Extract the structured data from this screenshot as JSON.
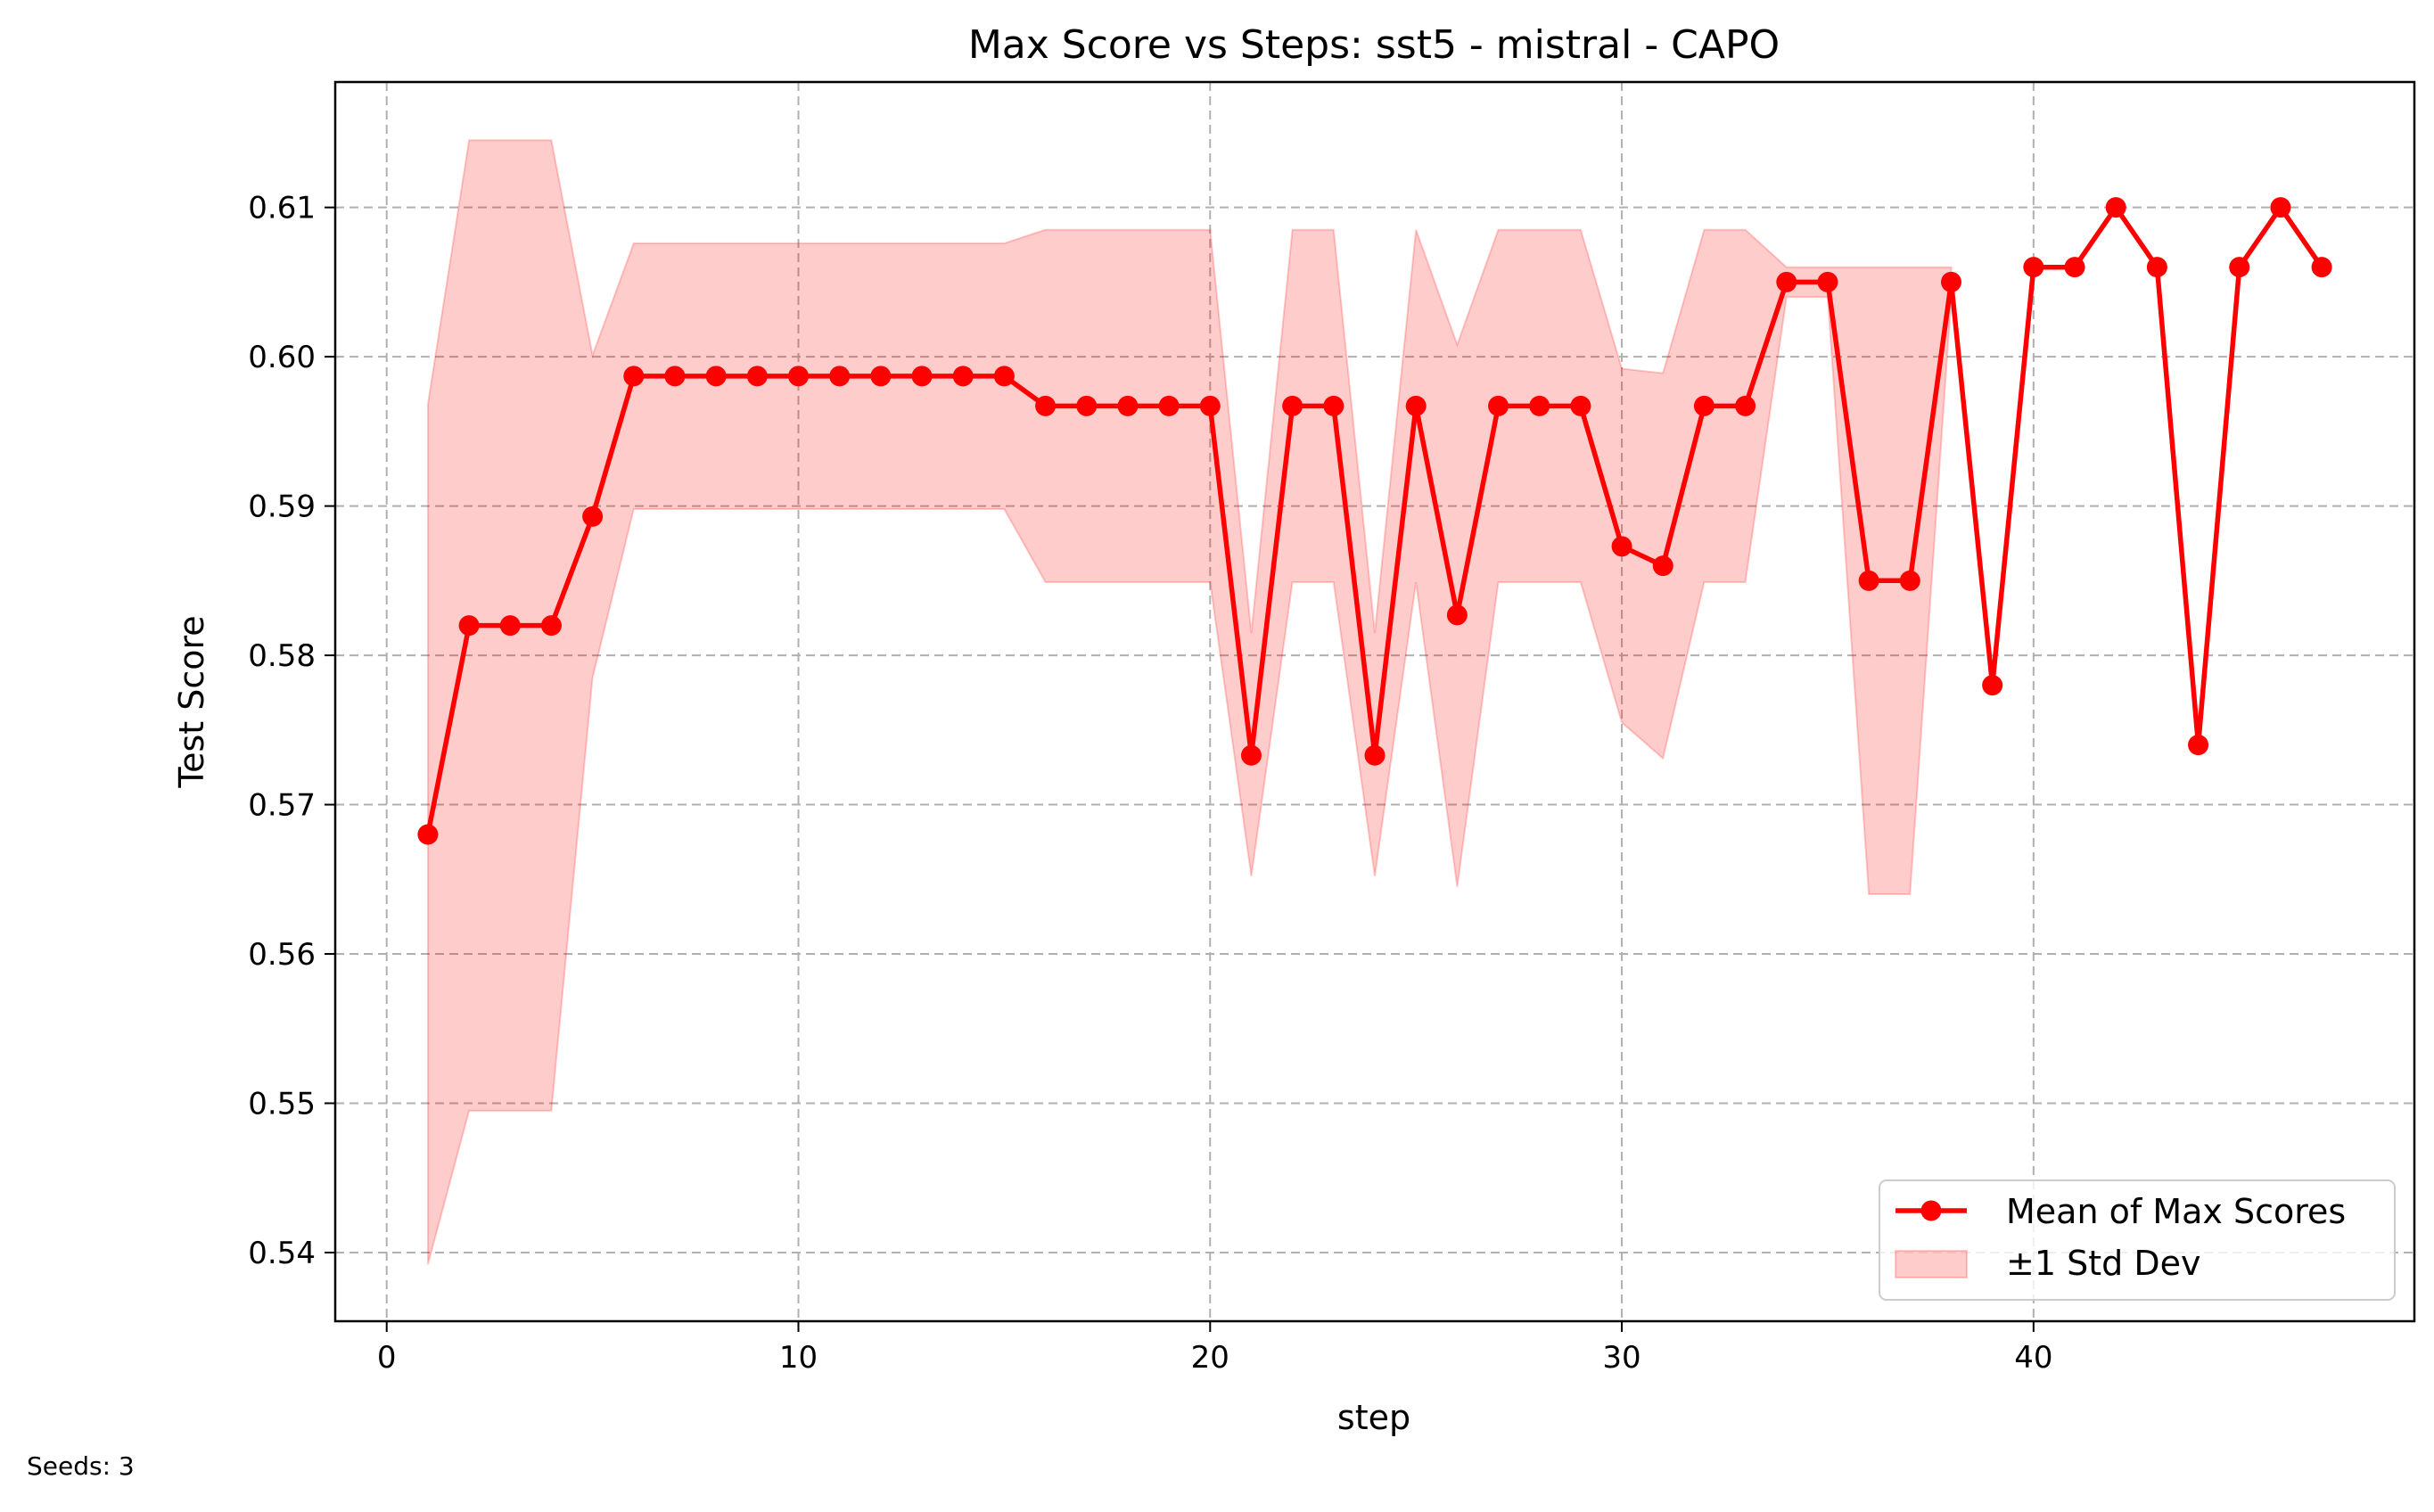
{
  "chart_data": {
    "type": "line",
    "title": "Max Score vs Steps: sst5 - mistral - CAPO",
    "xlabel": "step",
    "ylabel": "Test Score",
    "xlim": [
      -1.25,
      49.25
    ],
    "ylim": [
      0.5354,
      0.6184
    ],
    "xticks": [
      0,
      10,
      20,
      30,
      40
    ],
    "yticks": [
      0.54,
      0.55,
      0.56,
      0.57,
      0.58,
      0.59,
      0.6,
      0.61
    ],
    "ytick_labels": [
      "0.54",
      "0.55",
      "0.56",
      "0.57",
      "0.58",
      "0.59",
      "0.60",
      "0.61"
    ],
    "grid": true,
    "legend_position": "bottom-right",
    "series": [
      {
        "name": "Mean of Max Scores",
        "color": "#ff0000",
        "x": [
          1,
          2,
          3,
          4,
          5,
          6,
          7,
          8,
          9,
          10,
          11,
          12,
          13,
          14,
          15,
          16,
          17,
          18,
          19,
          20,
          21,
          22,
          23,
          24,
          25,
          26,
          27,
          28,
          29,
          30,
          31,
          32,
          33,
          34,
          35,
          36,
          37,
          38,
          39,
          40,
          41,
          42,
          43,
          44,
          45,
          46,
          47
        ],
        "values": [
          0.568,
          0.582,
          0.582,
          0.582,
          0.5893,
          0.5987,
          0.5987,
          0.5987,
          0.5987,
          0.5987,
          0.5987,
          0.5987,
          0.5987,
          0.5987,
          0.5987,
          0.5967,
          0.5967,
          0.5967,
          0.5967,
          0.5967,
          0.5733,
          0.5967,
          0.5967,
          0.5733,
          0.5967,
          0.5827,
          0.5967,
          0.5967,
          0.5967,
          0.5873,
          0.586,
          0.5967,
          0.5967,
          0.605,
          0.605,
          0.585,
          0.585,
          0.605,
          0.578,
          0.606,
          0.606,
          0.61,
          0.606,
          0.574,
          0.606,
          0.61,
          0.606
        ]
      }
    ],
    "band": {
      "name": "±1 Std Dev",
      "color": "#ff0000",
      "x": [
        1,
        2,
        3,
        4,
        5,
        6,
        7,
        8,
        9,
        10,
        11,
        12,
        13,
        14,
        15,
        16,
        17,
        18,
        19,
        20,
        21,
        22,
        23,
        24,
        25,
        26,
        27,
        28,
        29,
        30,
        31,
        32,
        33,
        34,
        35,
        36,
        37,
        38
      ],
      "lower": [
        0.5392,
        0.5495,
        0.5495,
        0.5495,
        0.5785,
        0.5898,
        0.5898,
        0.5898,
        0.5898,
        0.5898,
        0.5898,
        0.5898,
        0.5898,
        0.5898,
        0.5898,
        0.5849,
        0.5849,
        0.5849,
        0.5849,
        0.5849,
        0.5652,
        0.5849,
        0.5849,
        0.5652,
        0.5849,
        0.5645,
        0.5849,
        0.5849,
        0.5849,
        0.5755,
        0.5731,
        0.5849,
        0.5849,
        0.604,
        0.604,
        0.564,
        0.564,
        0.604
      ],
      "upper": [
        0.5968,
        0.6145,
        0.6145,
        0.6145,
        0.6001,
        0.6076,
        0.6076,
        0.6076,
        0.6076,
        0.6076,
        0.6076,
        0.6076,
        0.6076,
        0.6076,
        0.6076,
        0.6085,
        0.6085,
        0.6085,
        0.6085,
        0.6085,
        0.5815,
        0.6085,
        0.6085,
        0.5815,
        0.6085,
        0.6008,
        0.6085,
        0.6085,
        0.6085,
        0.5992,
        0.5989,
        0.6085,
        0.6085,
        0.606,
        0.606,
        0.606,
        0.606,
        0.606
      ]
    }
  },
  "footnote": "Seeds: 3"
}
